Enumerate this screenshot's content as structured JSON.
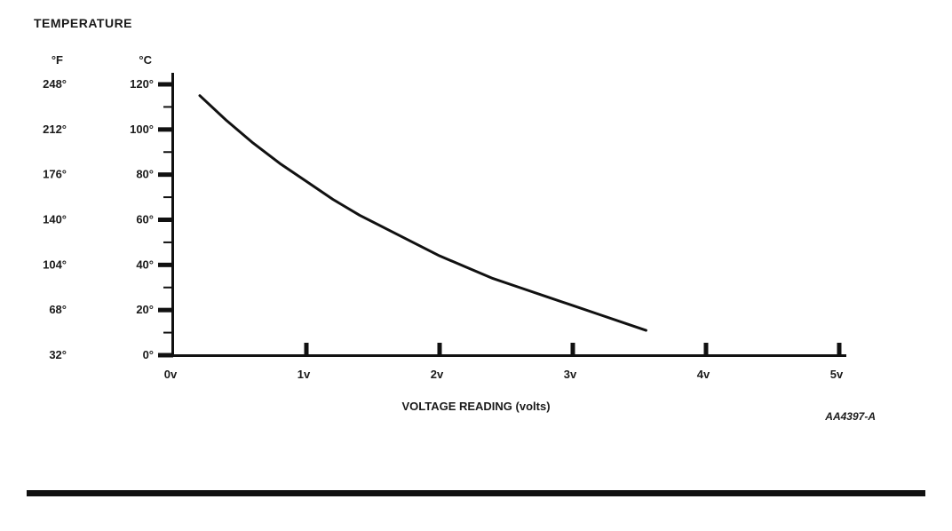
{
  "title": "TEMPERATURE",
  "figure_code": "AA4397-A",
  "ink_color": "#111111",
  "chart_data": {
    "type": "line",
    "title": "TEMPERATURE",
    "xlabel": "VOLTAGE READING (volts)",
    "ylabel_left": "°F",
    "ylabel_right": "°C",
    "x_ticks": [
      "0v",
      "1v",
      "2v",
      "3v",
      "4v",
      "5v"
    ],
    "x_tick_values": [
      0,
      1,
      2,
      3,
      4,
      5
    ],
    "y_axis_f_labels": [
      "248°",
      "212°",
      "176°",
      "140°",
      "104°",
      "68°",
      "32°"
    ],
    "y_axis_c_labels": [
      "120°",
      "100°",
      "80°",
      "60°",
      "40°",
      "20°",
      "0°"
    ],
    "y_tick_values_c": [
      120,
      100,
      80,
      60,
      40,
      20,
      0
    ],
    "y_minor_tick_values_c": [
      110,
      90,
      70,
      50,
      30,
      10
    ],
    "xlim": [
      0,
      5
    ],
    "ylim_c": [
      0,
      120
    ],
    "grid": false,
    "legend": "none",
    "series": [
      {
        "name": "temperature-vs-voltage-curve",
        "x": [
          0.2,
          0.4,
          0.6,
          0.8,
          1.0,
          1.2,
          1.4,
          1.6,
          1.8,
          2.0,
          2.2,
          2.4,
          2.6,
          2.8,
          3.0,
          3.2,
          3.4,
          3.55
        ],
        "y_c": [
          115,
          104,
          94,
          85,
          77,
          69,
          62,
          56,
          50,
          44,
          39,
          34,
          30,
          26,
          22,
          18,
          14,
          11
        ]
      }
    ]
  }
}
